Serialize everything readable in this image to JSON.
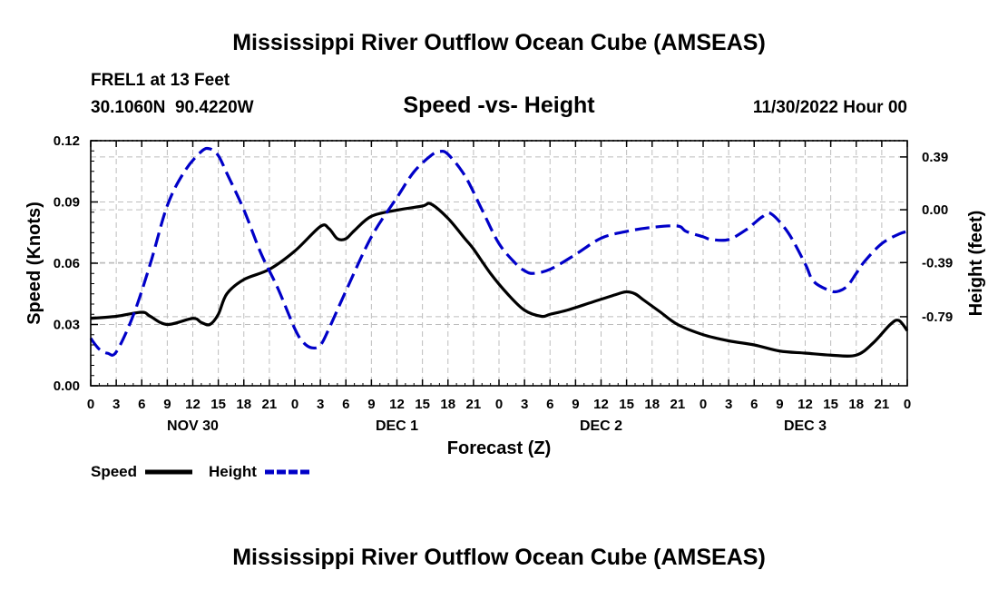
{
  "chart_data": {
    "type": "line",
    "title": "Mississippi River Outflow Ocean Cube (AMSEAS)",
    "footer_title": "Mississippi River Outflow Ocean Cube (AMSEAS)",
    "station": "FREL1 at 13 Feet",
    "location": "30.1060N  90.4220W",
    "subtitle": "Speed -vs- Height",
    "timestamp": "11/30/2022 Hour 00",
    "xlabel": "Forecast (Z)",
    "ylabel": "Speed (Knots)",
    "y2label": "Height (feet)",
    "xlim": [
      0,
      96
    ],
    "ylim": [
      0,
      0.12
    ],
    "y2lim": [
      -1.3,
      0.51
    ],
    "x_tick_hours": [
      0,
      3,
      6,
      9,
      12,
      15,
      18,
      21,
      24,
      27,
      30,
      33,
      36,
      39,
      42,
      45,
      48,
      51,
      54,
      57,
      60,
      63,
      66,
      69,
      72,
      75,
      78,
      81,
      84,
      87,
      90,
      93,
      96
    ],
    "x_tick_labels": [
      "0",
      "3",
      "6",
      "9",
      "12",
      "15",
      "18",
      "21",
      "0",
      "3",
      "6",
      "9",
      "12",
      "15",
      "18",
      "21",
      "0",
      "3",
      "6",
      "9",
      "12",
      "15",
      "18",
      "21",
      "0",
      "3",
      "6",
      "9",
      "12",
      "15",
      "18",
      "21",
      "0"
    ],
    "day_labels": [
      {
        "hour": 12,
        "label": "NOV 30"
      },
      {
        "hour": 36,
        "label": "DEC 1"
      },
      {
        "hour": 60,
        "label": "DEC 2"
      },
      {
        "hour": 84,
        "label": "DEC 3"
      }
    ],
    "y_ticks": [
      {
        "value": 0.0,
        "label": "0.00"
      },
      {
        "value": 0.03,
        "label": "0.03"
      },
      {
        "value": 0.06,
        "label": "0.06"
      },
      {
        "value": 0.09,
        "label": "0.09"
      },
      {
        "value": 0.12,
        "label": "0.12"
      }
    ],
    "y2_ticks": [
      {
        "value": 0.39,
        "label": "0.39"
      },
      {
        "value": 0.0,
        "label": "0.00"
      },
      {
        "value": -0.39,
        "label": "-0.39"
      },
      {
        "value": -0.79,
        "label": "-0.79"
      }
    ],
    "series": [
      {
        "name": "Speed",
        "axis": "left",
        "color": "#000000",
        "dash": "solid",
        "x": [
          0,
          3,
          6,
          7,
          9,
          12,
          13,
          14,
          15,
          16,
          18,
          21,
          24,
          27,
          28,
          29,
          30,
          31,
          33,
          36,
          39,
          40,
          42,
          44,
          45,
          47,
          49,
          51,
          53,
          54,
          56,
          59,
          62,
          63,
          64,
          65,
          66,
          67,
          69,
          72,
          75,
          78,
          81,
          84,
          87,
          90,
          92,
          94,
          95,
          96
        ],
        "values": [
          0.033,
          0.034,
          0.036,
          0.034,
          0.03,
          0.033,
          0.031,
          0.03,
          0.035,
          0.045,
          0.052,
          0.057,
          0.066,
          0.078,
          0.077,
          0.072,
          0.072,
          0.076,
          0.083,
          0.086,
          0.088,
          0.089,
          0.082,
          0.072,
          0.067,
          0.055,
          0.045,
          0.037,
          0.034,
          0.035,
          0.037,
          0.041,
          0.045,
          0.046,
          0.045,
          0.042,
          0.039,
          0.036,
          0.03,
          0.025,
          0.022,
          0.02,
          0.017,
          0.016,
          0.015,
          0.015,
          0.021,
          0.03,
          0.032,
          0.027
        ]
      },
      {
        "name": "Height",
        "axis": "right",
        "color": "#0000c8",
        "dash": "dashed",
        "x": [
          0,
          1,
          2,
          3,
          5,
          7,
          9,
          11,
          13,
          14,
          15,
          16,
          18,
          20,
          22,
          24,
          25,
          26,
          27,
          28,
          30,
          33,
          36,
          38,
          40,
          41,
          42,
          44,
          46,
          48,
          50,
          51,
          52,
          54,
          57,
          60,
          63,
          66,
          69,
          70,
          72,
          73,
          75,
          77,
          78,
          79,
          80,
          82,
          84,
          85,
          87,
          88,
          89,
          90,
          91,
          93,
          95,
          96
        ],
        "values": [
          -0.95,
          -1.03,
          -1.06,
          -1.05,
          -0.78,
          -0.4,
          0.03,
          0.28,
          0.43,
          0.45,
          0.4,
          0.27,
          0.0,
          -0.32,
          -0.58,
          -0.88,
          -0.98,
          -1.02,
          -1.0,
          -0.88,
          -0.6,
          -0.2,
          0.09,
          0.28,
          0.4,
          0.43,
          0.41,
          0.25,
          0.0,
          -0.25,
          -0.4,
          -0.45,
          -0.47,
          -0.44,
          -0.33,
          -0.21,
          -0.16,
          -0.13,
          -0.12,
          -0.16,
          -0.2,
          -0.22,
          -0.22,
          -0.15,
          -0.1,
          -0.05,
          -0.03,
          -0.17,
          -0.4,
          -0.53,
          -0.6,
          -0.6,
          -0.56,
          -0.47,
          -0.38,
          -0.25,
          -0.18,
          -0.16
        ]
      }
    ],
    "legend": [
      {
        "label": "Speed",
        "color": "#000000",
        "dash": "solid"
      },
      {
        "label": "Height",
        "color": "#0000c8",
        "dash": "dashed"
      }
    ]
  }
}
